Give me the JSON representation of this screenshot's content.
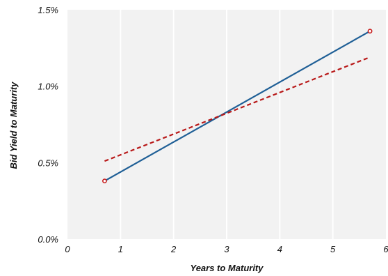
{
  "chart_data": {
    "type": "line",
    "title": "",
    "xlabel": "Years to Maturity",
    "ylabel": "Bid Yield to Maturity",
    "xlim": [
      0,
      6
    ],
    "ylim": [
      0.0,
      1.5
    ],
    "x_ticks": [
      0,
      1,
      2,
      3,
      4,
      5,
      6
    ],
    "y_ticks": [
      0.0,
      0.5,
      1.0,
      1.5
    ],
    "y_tick_format": "percent_1dp",
    "grid": "vertical",
    "background": "#f2f2f2",
    "series": [
      {
        "style": "solid",
        "color": "#1f5f96",
        "points": [
          [
            0.7,
            0.38
          ],
          [
            5.7,
            1.36
          ]
        ]
      },
      {
        "style": "dashed",
        "color": "#b81818",
        "points": [
          [
            0.7,
            0.51
          ],
          [
            5.7,
            1.19
          ]
        ]
      },
      {
        "style": "markers",
        "marker": "open-circle",
        "color": "#c81e1e",
        "points": [
          [
            0.7,
            0.38
          ],
          [
            5.7,
            1.36
          ]
        ]
      }
    ]
  }
}
